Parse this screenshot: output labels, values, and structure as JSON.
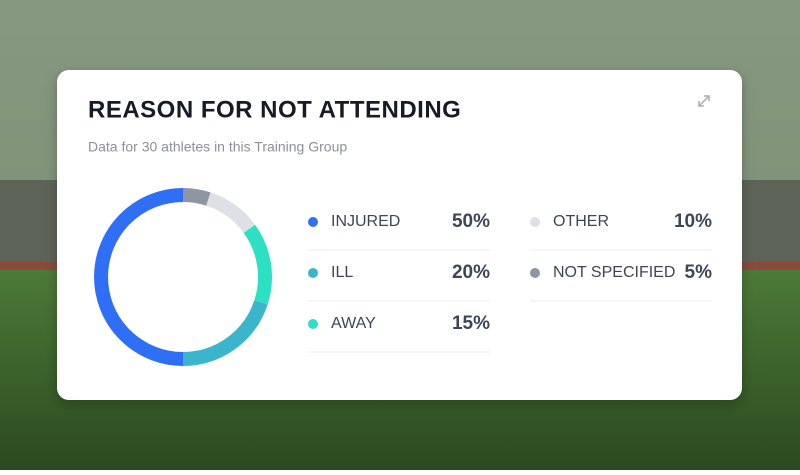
{
  "chart_data": {
    "type": "pie",
    "donut": true,
    "title": "REASON FOR NOT ATTENDING",
    "subtitle": "Data for 30 athletes in this Training Group",
    "categories": [
      "INJURED",
      "ILL",
      "AWAY",
      "OTHER",
      "NOT SPECIFIED"
    ],
    "values": [
      50,
      20,
      15,
      10,
      5
    ],
    "value_labels": [
      "50%",
      "20%",
      "15%",
      "10%",
      "5%"
    ],
    "colors": [
      "#2f6ff5",
      "#3ab5cc",
      "#2de0c4",
      "#dde1e6",
      "#8e95a3"
    ]
  }
}
